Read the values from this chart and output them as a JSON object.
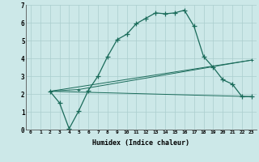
{
  "xlabel": "Humidex (Indice chaleur)",
  "xlim": [
    -0.5,
    23.5
  ],
  "ylim": [
    0,
    7
  ],
  "xticks": [
    0,
    1,
    2,
    3,
    4,
    5,
    6,
    7,
    8,
    9,
    10,
    11,
    12,
    13,
    14,
    15,
    16,
    17,
    18,
    19,
    20,
    21,
    22,
    23
  ],
  "yticks": [
    0,
    1,
    2,
    3,
    4,
    5,
    6,
    7
  ],
  "bg_color": "#cce8e8",
  "line_color": "#1a6b5a",
  "grid_color": "#aacece",
  "line1_x": [
    2,
    3,
    4,
    5,
    6,
    7,
    8,
    9,
    10,
    11,
    12,
    13,
    14,
    15,
    16,
    17,
    18,
    19,
    20,
    21,
    22,
    23
  ],
  "line1_y": [
    2.15,
    1.5,
    0.05,
    1.05,
    2.2,
    3.0,
    4.1,
    5.05,
    5.35,
    5.95,
    6.25,
    6.55,
    6.5,
    6.55,
    6.7,
    5.8,
    4.1,
    3.5,
    2.8,
    2.55,
    1.85,
    1.85
  ],
  "line2_x": [
    2,
    23
  ],
  "line2_y": [
    2.15,
    1.85
  ],
  "line3_x": [
    2,
    23
  ],
  "line3_y": [
    2.15,
    3.9
  ],
  "line4_x": [
    2,
    5,
    23
  ],
  "line4_y": [
    2.15,
    2.25,
    3.9
  ]
}
